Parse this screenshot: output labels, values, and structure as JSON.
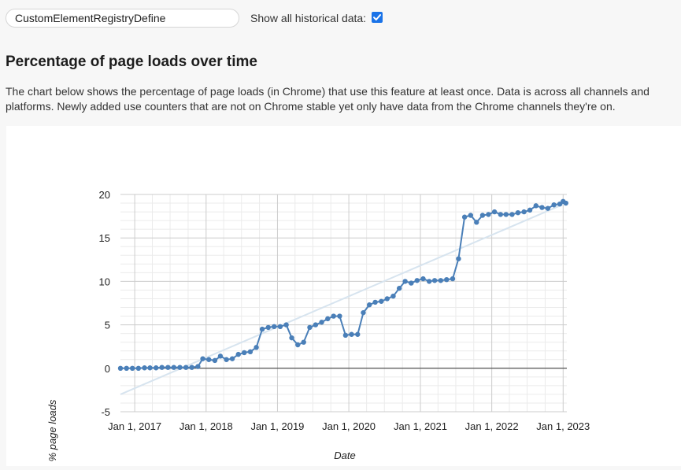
{
  "search": {
    "value": "CustomElementRegistryDefine"
  },
  "history_toggle": {
    "label": "Show all historical data:",
    "checked": true
  },
  "section": {
    "title": "Percentage of page loads over time",
    "description": "The chart below shows the percentage of page loads (in Chrome) that use this feature at least once. Data is across all channels and platforms. Newly added use counters that are not on Chrome stable yet only have data from the Chrome channels they're on."
  },
  "colors": {
    "series": "#4a7fb8",
    "trendline": "#d7e4ef",
    "accent": "#1a73e8"
  },
  "chart_data": {
    "type": "line",
    "xlabel": "Date",
    "ylabel": "% page loads",
    "ylim": [
      -5,
      20
    ],
    "yticks": [
      "-5",
      "0",
      "5",
      "10",
      "15",
      "20"
    ],
    "xticks": [
      "Jan 1, 2017",
      "Jan 1, 2018",
      "Jan 1, 2019",
      "Jan 1, 2020",
      "Jan 1, 2021",
      "Jan 1, 2022",
      "Jan 1, 2023"
    ],
    "xlim": [
      "2016-10-20",
      "2023-01-20"
    ],
    "grid": true,
    "legend": "none",
    "trendline": {
      "start": {
        "x": "2016-10-20",
        "y": -3.0
      },
      "end": {
        "x": "2023-01-15",
        "y": 19.0
      }
    },
    "series": [
      {
        "points": [
          {
            "x": "2016-10-20",
            "y": 0.0
          },
          {
            "x": "2016-11-20",
            "y": 0.0
          },
          {
            "x": "2016-12-20",
            "y": 0.0
          },
          {
            "x": "2017-01-20",
            "y": 0.0
          },
          {
            "x": "2017-02-20",
            "y": 0.05
          },
          {
            "x": "2017-03-20",
            "y": 0.05
          },
          {
            "x": "2017-04-20",
            "y": 0.05
          },
          {
            "x": "2017-05-20",
            "y": 0.1
          },
          {
            "x": "2017-06-20",
            "y": 0.1
          },
          {
            "x": "2017-07-20",
            "y": 0.1
          },
          {
            "x": "2017-08-20",
            "y": 0.1
          },
          {
            "x": "2017-09-20",
            "y": 0.1
          },
          {
            "x": "2017-10-20",
            "y": 0.1
          },
          {
            "x": "2017-11-20",
            "y": 0.2
          },
          {
            "x": "2017-12-15",
            "y": 1.1
          },
          {
            "x": "2018-01-15",
            "y": 1.0
          },
          {
            "x": "2018-02-15",
            "y": 0.9
          },
          {
            "x": "2018-03-15",
            "y": 1.4
          },
          {
            "x": "2018-04-15",
            "y": 1.0
          },
          {
            "x": "2018-05-15",
            "y": 1.1
          },
          {
            "x": "2018-06-15",
            "y": 1.6
          },
          {
            "x": "2018-07-15",
            "y": 1.8
          },
          {
            "x": "2018-08-15",
            "y": 1.9
          },
          {
            "x": "2018-09-15",
            "y": 2.4
          },
          {
            "x": "2018-10-15",
            "y": 4.5
          },
          {
            "x": "2018-11-15",
            "y": 4.7
          },
          {
            "x": "2018-12-15",
            "y": 4.8
          },
          {
            "x": "2019-01-15",
            "y": 4.8
          },
          {
            "x": "2019-02-15",
            "y": 5.0
          },
          {
            "x": "2019-03-15",
            "y": 3.5
          },
          {
            "x": "2019-04-15",
            "y": 2.7
          },
          {
            "x": "2019-05-15",
            "y": 3.0
          },
          {
            "x": "2019-06-15",
            "y": 4.7
          },
          {
            "x": "2019-07-15",
            "y": 5.0
          },
          {
            "x": "2019-08-15",
            "y": 5.3
          },
          {
            "x": "2019-09-15",
            "y": 5.7
          },
          {
            "x": "2019-10-15",
            "y": 6.0
          },
          {
            "x": "2019-11-15",
            "y": 6.0
          },
          {
            "x": "2019-12-15",
            "y": 3.8
          },
          {
            "x": "2020-01-15",
            "y": 3.9
          },
          {
            "x": "2020-02-15",
            "y": 3.9
          },
          {
            "x": "2020-03-15",
            "y": 6.4
          },
          {
            "x": "2020-04-15",
            "y": 7.3
          },
          {
            "x": "2020-05-15",
            "y": 7.6
          },
          {
            "x": "2020-06-15",
            "y": 7.7
          },
          {
            "x": "2020-07-15",
            "y": 8.0
          },
          {
            "x": "2020-08-15",
            "y": 8.3
          },
          {
            "x": "2020-09-15",
            "y": 9.2
          },
          {
            "x": "2020-10-15",
            "y": 10.0
          },
          {
            "x": "2020-11-15",
            "y": 9.8
          },
          {
            "x": "2020-12-15",
            "y": 10.1
          },
          {
            "x": "2021-01-15",
            "y": 10.3
          },
          {
            "x": "2021-02-15",
            "y": 10.0
          },
          {
            "x": "2021-03-15",
            "y": 10.1
          },
          {
            "x": "2021-04-15",
            "y": 10.1
          },
          {
            "x": "2021-05-15",
            "y": 10.2
          },
          {
            "x": "2021-06-15",
            "y": 10.3
          },
          {
            "x": "2021-07-15",
            "y": 12.6
          },
          {
            "x": "2021-08-15",
            "y": 17.4
          },
          {
            "x": "2021-09-15",
            "y": 17.6
          },
          {
            "x": "2021-10-15",
            "y": 16.8
          },
          {
            "x": "2021-11-15",
            "y": 17.6
          },
          {
            "x": "2021-12-15",
            "y": 17.7
          },
          {
            "x": "2022-01-15",
            "y": 18.0
          },
          {
            "x": "2022-02-15",
            "y": 17.7
          },
          {
            "x": "2022-03-15",
            "y": 17.7
          },
          {
            "x": "2022-04-15",
            "y": 17.7
          },
          {
            "x": "2022-05-15",
            "y": 17.9
          },
          {
            "x": "2022-06-15",
            "y": 18.0
          },
          {
            "x": "2022-07-15",
            "y": 18.2
          },
          {
            "x": "2022-08-15",
            "y": 18.7
          },
          {
            "x": "2022-09-15",
            "y": 18.5
          },
          {
            "x": "2022-10-15",
            "y": 18.4
          },
          {
            "x": "2022-11-15",
            "y": 18.8
          },
          {
            "x": "2022-12-15",
            "y": 18.9
          },
          {
            "x": "2023-01-01",
            "y": 19.2
          },
          {
            "x": "2023-01-15",
            "y": 19.0
          }
        ]
      }
    ]
  }
}
